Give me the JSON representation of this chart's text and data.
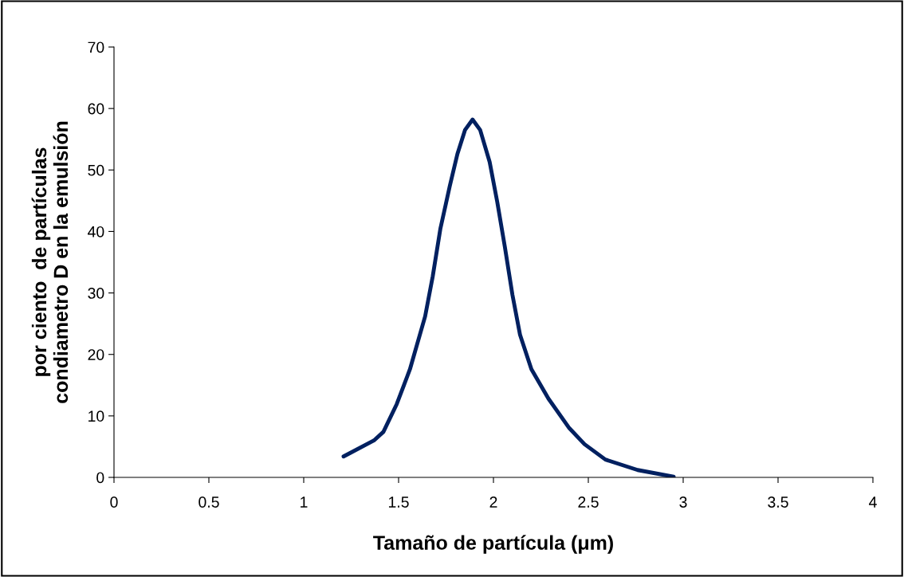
{
  "chart_data": {
    "type": "line",
    "xlabel": "Tamaño de partícula (μm)",
    "ylabel": "por ciento  de partículas\ncondiametro D en la emulsión",
    "xlim": [
      0,
      4
    ],
    "xticks": [
      0,
      0.5,
      1,
      1.5,
      2,
      2.5,
      3,
      3.5,
      4
    ],
    "ylim": [
      0,
      70
    ],
    "yticks": [
      0,
      10,
      20,
      30,
      40,
      50,
      60,
      70
    ],
    "grid": false,
    "marker": "none",
    "line_style": "solid",
    "series": [
      {
        "color": "#002060",
        "x": [
          1.21,
          1.37,
          1.42,
          1.49,
          1.56,
          1.64,
          1.68,
          1.72,
          1.77,
          1.81,
          1.85,
          1.89,
          1.93,
          1.98,
          2.02,
          2.06,
          2.1,
          2.14,
          2.2,
          2.29,
          2.4,
          2.48,
          2.59,
          2.76,
          2.95
        ],
        "values": [
          3.4,
          6.0,
          7.4,
          11.9,
          17.6,
          26.2,
          32.7,
          40.4,
          47.4,
          52.6,
          56.5,
          58.2,
          56.5,
          51.3,
          44.8,
          37.5,
          29.7,
          23.2,
          17.6,
          12.8,
          8.0,
          5.4,
          2.9,
          1.2,
          0.1
        ]
      }
    ]
  }
}
